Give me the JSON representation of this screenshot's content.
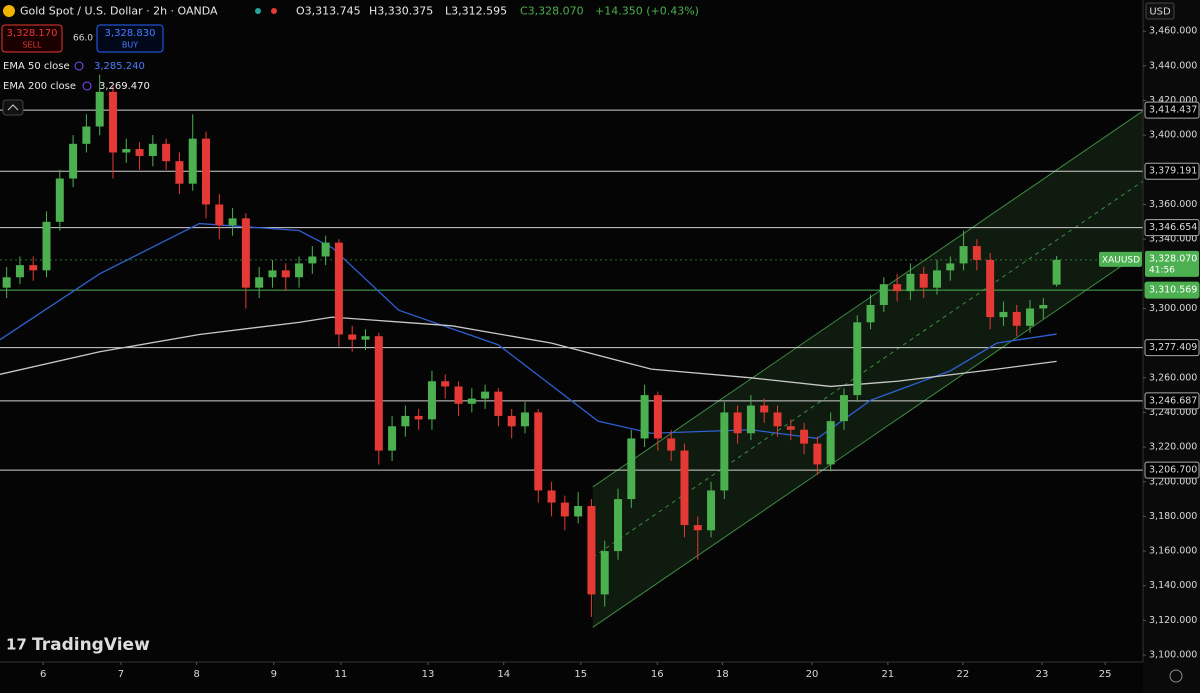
{
  "header": {
    "title": "Gold Spot / U.S. Dollar · 2h · OANDA",
    "ohlc": {
      "open": "O3,313.745",
      "high": "H3,330.375",
      "low": "L3,312.595",
      "close": "C3,328.070",
      "change": "+14.350 (+0.43%)"
    },
    "sell": {
      "price": "3,328.170",
      "label": "SELL"
    },
    "spread": "66.0",
    "buy": {
      "price": "3,328.830",
      "label": "BUY"
    },
    "currency": "USD",
    "brand": "TradingView"
  },
  "chart_data": {
    "type": "candlestick",
    "up_color": "#4caf50",
    "down_color": "#e53935",
    "x": [
      1,
      3,
      5,
      7,
      9,
      11,
      13,
      15,
      17,
      19,
      21,
      23,
      25,
      27,
      29,
      31,
      33,
      35,
      37,
      39,
      41,
      43,
      45,
      47,
      49,
      51,
      53,
      55,
      57,
      59,
      61,
      63,
      65,
      67,
      69,
      71,
      73,
      75,
      77,
      79,
      81,
      83,
      85,
      87,
      89,
      91,
      93,
      95,
      97,
      99,
      101,
      103,
      105,
      107,
      109,
      111,
      113,
      115,
      117,
      119,
      121,
      123,
      125,
      127,
      129,
      131,
      133,
      135,
      137,
      139,
      141,
      143,
      145,
      147,
      149,
      151,
      153,
      155,
      157,
      159
    ],
    "open": [
      3312,
      3318,
      3325,
      3322,
      3350,
      3375,
      3395,
      3405,
      3425,
      3390,
      3392,
      3388,
      3395,
      3385,
      3372,
      3398,
      3360,
      3348,
      3352,
      3312,
      3318,
      3322,
      3318,
      3326,
      3330,
      3338,
      3285,
      3282,
      3284,
      3218,
      3232,
      3238,
      3236,
      3258,
      3255,
      3245,
      3248,
      3252,
      3238,
      3232,
      3240,
      3195,
      3188,
      3180,
      3186,
      3135,
      3160,
      3190,
      3225,
      3250,
      3225,
      3218,
      3175,
      3172,
      3195,
      3240,
      3228,
      3244,
      3240,
      3232,
      3230,
      3222,
      3210,
      3235,
      3250,
      3292,
      3302,
      3314,
      3310,
      3320,
      3312,
      3322,
      3326,
      3336,
      3328,
      3295,
      3298,
      3290,
      3300,
      3313.745
    ],
    "high": [
      3324,
      3330,
      3330,
      3356,
      3380,
      3400,
      3412,
      3435,
      3428,
      3398,
      3396,
      3400,
      3398,
      3390,
      3412,
      3402,
      3366,
      3358,
      3355,
      3324,
      3328,
      3326,
      3330,
      3336,
      3342,
      3340,
      3290,
      3288,
      3286,
      3238,
      3244,
      3242,
      3264,
      3262,
      3258,
      3254,
      3256,
      3254,
      3242,
      3246,
      3242,
      3200,
      3192,
      3194,
      3190,
      3166,
      3196,
      3230,
      3256,
      3252,
      3230,
      3222,
      3180,
      3200,
      3246,
      3244,
      3250,
      3248,
      3244,
      3236,
      3234,
      3226,
      3240,
      3254,
      3296,
      3308,
      3318,
      3320,
      3326,
      3324,
      3328,
      3330,
      3345,
      3340,
      3332,
      3304,
      3302,
      3305,
      3306,
      3330.375
    ],
    "low": [
      3306,
      3314,
      3316,
      3318,
      3345,
      3370,
      3390,
      3400,
      3375,
      3384,
      3380,
      3382,
      3380,
      3366,
      3368,
      3352,
      3340,
      3342,
      3300,
      3306,
      3312,
      3310,
      3312,
      3320,
      3325,
      3278,
      3275,
      3276,
      3210,
      3212,
      3226,
      3230,
      3230,
      3248,
      3238,
      3240,
      3242,
      3232,
      3225,
      3228,
      3188,
      3180,
      3172,
      3176,
      3122,
      3128,
      3155,
      3185,
      3220,
      3218,
      3212,
      3168,
      3155,
      3168,
      3190,
      3222,
      3224,
      3234,
      3226,
      3224,
      3216,
      3204,
      3206,
      3230,
      3246,
      3288,
      3298,
      3304,
      3305,
      3306,
      3308,
      3316,
      3322,
      3322,
      3288,
      3290,
      3284,
      3286,
      3294,
      3312.595
    ],
    "close": [
      3318,
      3325,
      3322,
      3350,
      3375,
      3395,
      3405,
      3425,
      3390,
      3392,
      3388,
      3395,
      3385,
      3372,
      3398,
      3360,
      3348,
      3352,
      3312,
      3318,
      3322,
      3318,
      3326,
      3330,
      3338,
      3285,
      3282,
      3284,
      3218,
      3232,
      3238,
      3236,
      3258,
      3255,
      3245,
      3248,
      3252,
      3238,
      3232,
      3240,
      3195,
      3188,
      3180,
      3186,
      3135,
      3160,
      3190,
      3225,
      3250,
      3225,
      3218,
      3175,
      3172,
      3195,
      3240,
      3228,
      3244,
      3240,
      3232,
      3230,
      3222,
      3210,
      3235,
      3250,
      3292,
      3302,
      3314,
      3310,
      3320,
      3312,
      3322,
      3326,
      3336,
      3328,
      3295,
      3298,
      3290,
      3300,
      3302,
      3328.07
    ],
    "lines": [
      {
        "name": "EMA 50 close",
        "value_label": "3,285.240",
        "color": "#2f5fd0",
        "x": [
          0,
          15,
          30,
          45,
          50,
          60,
          75,
          90,
          98,
          113,
          123,
          131,
          143,
          150,
          159
        ],
        "values": [
          3282,
          3320,
          3349,
          3345,
          3335,
          3299,
          3279,
          3235,
          3228,
          3230,
          3225,
          3247,
          3264,
          3280,
          3285.24
        ]
      },
      {
        "name": "EMA 200 close",
        "value_label": "3,269.470",
        "color": "#c8c8c8",
        "x": [
          0,
          15,
          30,
          45,
          50,
          68,
          83,
          98,
          113,
          125,
          135,
          150,
          159
        ],
        "values": [
          3262,
          3275,
          3285,
          3292,
          3295,
          3290,
          3280,
          3265,
          3260,
          3255,
          3258,
          3265,
          3269.47
        ]
      }
    ],
    "channel": {
      "x": [
        89.2,
        172
      ],
      "upper": [
        3197,
        3414
      ],
      "lower": [
        3116,
        3333
      ]
    },
    "hlines": [
      {
        "value": 3414.437,
        "label": "3,414.437",
        "color": "#d0d0d0"
      },
      {
        "value": 3379.191,
        "label": "3,379.191",
        "color": "#d0d0d0"
      },
      {
        "value": 3346.654,
        "label": "3,346.654",
        "color": "#d0d0d0"
      },
      {
        "value": 3310.569,
        "label": "3,310.569",
        "color": "#4caf50"
      },
      {
        "value": 3277.409,
        "label": "3,277.409",
        "color": "#d0d0d0"
      },
      {
        "value": 3246.687,
        "label": "3,246.687",
        "color": "#d0d0d0"
      },
      {
        "value": 3206.7,
        "label": "3,206.700",
        "color": "#d0d0d0"
      }
    ],
    "current": {
      "value": 3328.07,
      "label": "3,328.070",
      "symbol": "XAUUSD",
      "countdown": "41:56",
      "color": "#4caf50"
    },
    "xlim": [
      0,
      172
    ],
    "xticks": [
      {
        "value": 6.5,
        "label": "6"
      },
      {
        "value": 18.2,
        "label": "7"
      },
      {
        "value": 29.6,
        "label": "8"
      },
      {
        "value": 41.2,
        "label": "9"
      },
      {
        "value": 51.3,
        "label": "11"
      },
      {
        "value": 64.4,
        "label": "13"
      },
      {
        "value": 75.8,
        "label": "14"
      },
      {
        "value": 87.4,
        "label": "15"
      },
      {
        "value": 98.9,
        "label": "16"
      },
      {
        "value": 108.7,
        "label": "18"
      },
      {
        "value": 122.2,
        "label": "20"
      },
      {
        "value": 133.6,
        "label": "21"
      },
      {
        "value": 144.9,
        "label": "22"
      },
      {
        "value": 156.8,
        "label": "23"
      },
      {
        "value": 166.3,
        "label": "25"
      }
    ],
    "ylim": [
      3096,
      3478
    ],
    "yticks": [
      {
        "value": 3100,
        "label": "3,100.000"
      },
      {
        "value": 3120,
        "label": "3,120.000"
      },
      {
        "value": 3140,
        "label": "3,140.000"
      },
      {
        "value": 3160,
        "label": "3,160.000"
      },
      {
        "value": 3180,
        "label": "3,180.000"
      },
      {
        "value": 3200,
        "label": "3,200.000"
      },
      {
        "value": 3220,
        "label": "3,220.000"
      },
      {
        "value": 3240,
        "label": "3,240.000"
      },
      {
        "value": 3260,
        "label": "3,260.000"
      },
      {
        "value": 3300,
        "label": "3,300.000"
      },
      {
        "value": 3340,
        "label": "3,340.000"
      },
      {
        "value": 3360,
        "label": "3,360.000"
      },
      {
        "value": 3400,
        "label": "3,400.000"
      },
      {
        "value": 3420,
        "label": "3,420.000"
      },
      {
        "value": 3440,
        "label": "3,440.000"
      },
      {
        "value": 3460,
        "label": "3,460.000"
      }
    ]
  }
}
